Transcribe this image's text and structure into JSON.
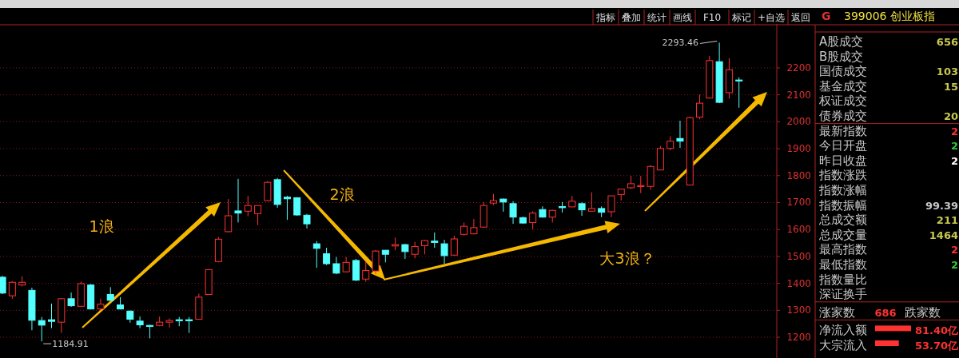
{
  "chart_data": [
    {
      "type": "candlestick",
      "categories": [
        null,
        null,
        null,
        null,
        null,
        null,
        null,
        null,
        null,
        null,
        null,
        null,
        null,
        null,
        null,
        null,
        null,
        null,
        null,
        null,
        null,
        null,
        null,
        null,
        null,
        null,
        null,
        null,
        null,
        null,
        null,
        null,
        null,
        null,
        null,
        null,
        null,
        null,
        null,
        null,
        null,
        null,
        null,
        null,
        null,
        null,
        null,
        null,
        null,
        null,
        null,
        null,
        null,
        null,
        null,
        null,
        null,
        null,
        null,
        null,
        null,
        null,
        null,
        null,
        null,
        null,
        null,
        null,
        null,
        null,
        null,
        null,
        null,
        null,
        null,
        null
      ],
      "ohlc": [
        [
          1423,
          1428,
          1360,
          1364
        ],
        [
          1354,
          1408,
          1343,
          1404
        ],
        [
          1394,
          1426,
          1389,
          1404
        ],
        [
          1374,
          1384,
          1226,
          1263
        ],
        [
          1262,
          1275,
          1184.91,
          1245
        ],
        [
          1265,
          1325,
          1234,
          1259
        ],
        [
          1256,
          1345,
          1216,
          1343
        ],
        [
          1343,
          1366,
          1313,
          1317
        ],
        [
          1315,
          1406,
          1313,
          1399
        ],
        [
          1394,
          1398,
          1303,
          1305
        ],
        [
          1305,
          1343,
          1300,
          1323
        ],
        [
          1359,
          1386,
          1335,
          1337
        ],
        [
          1320,
          1349,
          1303,
          1305
        ],
        [
          1297,
          1300,
          1254,
          1267
        ],
        [
          1260,
          1277,
          1234,
          1246
        ],
        [
          1244,
          1246,
          1196,
          1240
        ],
        [
          1244,
          1277,
          1241,
          1256
        ],
        [
          1256,
          1270,
          1236,
          1262
        ],
        [
          1265,
          1275,
          1241,
          1261
        ],
        [
          1265,
          1275,
          1216,
          1261
        ],
        [
          1267,
          1362,
          1265,
          1349
        ],
        [
          1359,
          1453,
          1357,
          1451
        ],
        [
          1481,
          1572,
          1478,
          1564
        ],
        [
          1592,
          1713,
          1590,
          1651
        ],
        [
          1669,
          1788,
          1626,
          1661
        ],
        [
          1668,
          1725,
          1649,
          1689
        ],
        [
          1659,
          1689,
          1616,
          1689
        ],
        [
          1707,
          1780,
          1705,
          1775
        ],
        [
          1785,
          1791,
          1681,
          1693
        ],
        [
          1720,
          1725,
          1636,
          1714
        ],
        [
          1718,
          1720,
          1651,
          1654
        ],
        [
          1653,
          1658,
          1604,
          1621
        ],
        [
          1547,
          1557,
          1458,
          1530
        ],
        [
          1510,
          1532,
          1468,
          1473
        ],
        [
          1473,
          1498,
          1434,
          1438
        ],
        [
          1443,
          1498,
          1441,
          1478
        ],
        [
          1485,
          1491,
          1409,
          1412
        ],
        [
          1416,
          1481,
          1406,
          1448
        ],
        [
          1446,
          1524,
          1434,
          1520
        ],
        [
          1523,
          1524,
          1478,
          1508
        ],
        [
          1539,
          1570,
          1523,
          1544
        ],
        [
          1544,
          1547,
          1491,
          1518
        ],
        [
          1508,
          1554,
          1493,
          1537
        ],
        [
          1540,
          1562,
          1508,
          1559
        ],
        [
          1557,
          1589,
          1532,
          1552
        ],
        [
          1547,
          1562,
          1473,
          1503
        ],
        [
          1505,
          1577,
          1503,
          1565
        ],
        [
          1582,
          1626,
          1577,
          1612
        ],
        [
          1584,
          1639,
          1582,
          1607
        ],
        [
          1609,
          1702,
          1607,
          1689
        ],
        [
          1698,
          1732,
          1691,
          1707
        ],
        [
          1713,
          1715,
          1666,
          1702
        ],
        [
          1696,
          1705,
          1621,
          1646
        ],
        [
          1644,
          1648,
          1621,
          1624
        ],
        [
          1626,
          1668,
          1600,
          1661
        ],
        [
          1674,
          1686,
          1644,
          1646
        ],
        [
          1646,
          1673,
          1626,
          1671
        ],
        [
          1685,
          1702,
          1663,
          1681
        ],
        [
          1684,
          1725,
          1683,
          1705
        ],
        [
          1696,
          1701,
          1651,
          1673
        ],
        [
          1668,
          1738,
          1666,
          1678
        ],
        [
          1678,
          1686,
          1646,
          1664
        ],
        [
          1666,
          1725,
          1646,
          1725
        ],
        [
          1730,
          1750,
          1708,
          1750
        ],
        [
          1755,
          1799,
          1750,
          1770
        ],
        [
          1760,
          1799,
          1735,
          1763
        ],
        [
          1760,
          1839,
          1748,
          1834
        ],
        [
          1821,
          1910,
          1821,
          1901
        ],
        [
          1901,
          1946,
          1894,
          1928
        ],
        [
          1938,
          2004,
          1903,
          1928
        ],
        [
          1765,
          2019,
          1765,
          2015
        ],
        [
          2017,
          2101,
          2009,
          2069
        ],
        [
          2088,
          2244,
          2086,
          2227
        ],
        [
          2223,
          2293.46,
          2069,
          2072
        ],
        [
          2108,
          2236,
          2086,
          2193
        ],
        [
          2155,
          2165,
          2052,
          2152
        ]
      ],
      "colors": [
        "#54ffff",
        "#ff3232",
        "#ff3232",
        "#54ffff",
        "#54ffff",
        "#54ffff",
        "#ff3232",
        "#54ffff",
        "#ff3232",
        "#54ffff",
        "#ff3232",
        "#54ffff",
        "#54ffff",
        "#54ffff",
        "#54ffff",
        "#54ffff",
        "#ff3232",
        "#ff3232",
        "#54ffff",
        "#54ffff",
        "#ff3232",
        "#ff3232",
        "#ff3232",
        "#ff3232",
        "#54ffff",
        "#ff3232",
        "#ff3232",
        "#ff3232",
        "#54ffff",
        "#54ffff",
        "#54ffff",
        "#54ffff",
        "#54ffff",
        "#54ffff",
        "#54ffff",
        "#ff3232",
        "#54ffff",
        "#ff3232",
        "#ff3232",
        "#54ffff",
        "#ff3232",
        "#54ffff",
        "#ff3232",
        "#ff3232",
        "#54ffff",
        "#54ffff",
        "#ff3232",
        "#ff3232",
        "#ff3232",
        "#ff3232",
        "#ff3232",
        "#54ffff",
        "#54ffff",
        "#54ffff",
        "#ff3232",
        "#54ffff",
        "#ff3232",
        "#54ffff",
        "#ff3232",
        "#54ffff",
        "#ff3232",
        "#54ffff",
        "#ff3232",
        "#ff3232",
        "#ff3232",
        "#ff3232",
        "#ff3232",
        "#ff3232",
        "#ff3232",
        "#54ffff",
        "#ff3232",
        "#ff3232",
        "#ff3232",
        "#54ffff",
        "#ff3232",
        "#54ffff"
      ],
      "ylim": [
        1123,
        2360
      ],
      "yticks": [
        1200,
        1300,
        1400,
        1500,
        1600,
        1700,
        1800,
        1900,
        2000,
        2100,
        2200
      ],
      "grid": "y",
      "annotations": [
        "1浪",
        "2浪",
        "大3浪？",
        "2293.46",
        "1184.91",
        "指标",
        "叠加",
        "统计",
        "画线",
        "F10",
        "标记",
        "+自选",
        "返回"
      ]
    },
    {
      "type": "other",
      "subtitle": "G",
      "title": "399006 创业板指",
      "categories": [
        "A股成交",
        "B股成交",
        "国债成交",
        "基金成交",
        "权证成交",
        "债券成交",
        "最新指数",
        "今日开盘",
        "昨日收盘",
        "指数涨跌",
        "指数涨幅",
        "指数振幅",
        "总成交额",
        "总成交量",
        "最高指数",
        "最低指数",
        "指数量比",
        "深证换手",
        "涨家数",
        "净流入额",
        "大宗流入"
      ],
      "value_labels": [
        "656",
        null,
        "103",
        "15",
        null,
        "20",
        "2",
        "2",
        "2",
        null,
        null,
        "99.39",
        "211",
        "1464",
        "2",
        "2",
        null,
        null,
        "686",
        "81.40亿",
        "53.70亿"
      ],
      "values": [
        null,
        null,
        null,
        null,
        null,
        null,
        null,
        null,
        null,
        null,
        null,
        null,
        null,
        null,
        null,
        null,
        null,
        null,
        null,
        81.4,
        53.7
      ],
      "colors": [
        "#c8c850",
        null,
        "#c8c850",
        "#c8c850",
        null,
        "#c8c850",
        "#ff3232",
        "#32c832",
        "#ffffff",
        null,
        null,
        "#c8c8c8",
        "#c8c850",
        "#c8c850",
        "#ff3232",
        "#32c832",
        null,
        null,
        "#ff3232",
        "#ff3232",
        "#ff3232"
      ],
      "annotations": [
        "跌家数"
      ]
    }
  ]
}
